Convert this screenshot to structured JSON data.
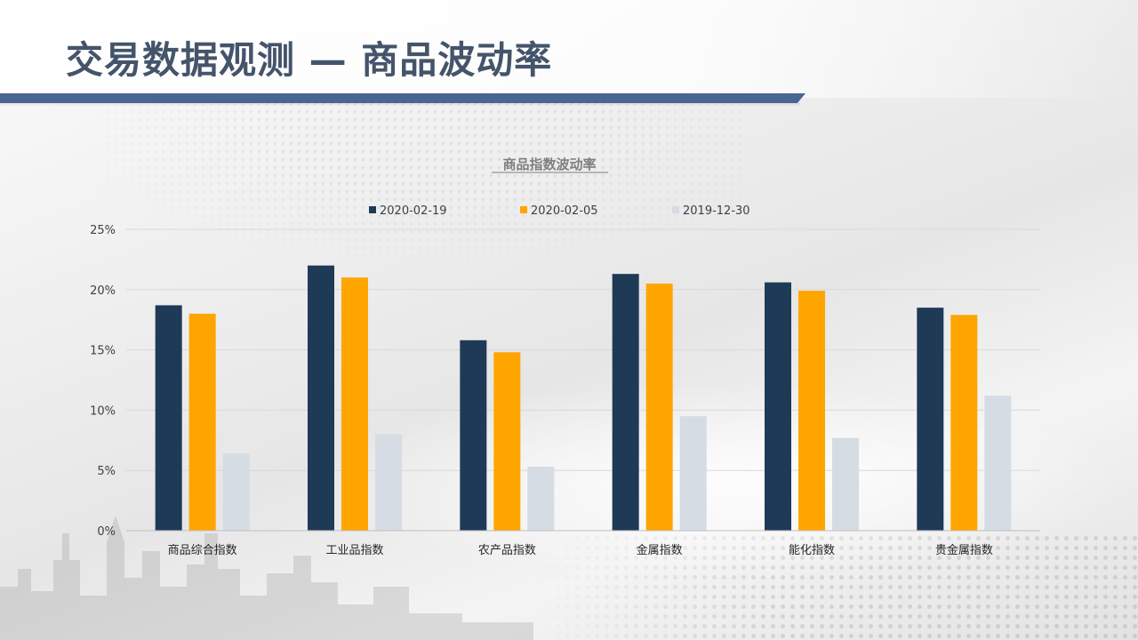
{
  "page": {
    "title": "交易数据观测 — 商品波动率"
  },
  "colors": {
    "title_text": "#44546A",
    "title_bar": "#4A6592",
    "gridline": "#D9D9D9"
  },
  "chart_data": {
    "type": "bar",
    "title": "商品指数波动率",
    "xlabel": "",
    "ylabel": "",
    "ylim": [
      0,
      25
    ],
    "yticks": [
      0,
      5,
      10,
      15,
      20,
      25
    ],
    "ytick_labels": [
      "0%",
      "5%",
      "10%",
      "15%",
      "20%",
      "25%"
    ],
    "grid": true,
    "legend_position": "top-center",
    "categories": [
      "商品综合指数",
      "工业品指数",
      "农产品指数",
      "金属指数",
      "能化指数",
      "贵金属指数"
    ],
    "series": [
      {
        "name": "2020-02-19",
        "color": "#1F3A57",
        "values": [
          18.7,
          22.0,
          15.8,
          21.3,
          20.6,
          18.5
        ]
      },
      {
        "name": "2020-02-05",
        "color": "#FFA500",
        "values": [
          18.0,
          21.0,
          14.8,
          20.5,
          19.9,
          17.9
        ]
      },
      {
        "name": "2019-12-30",
        "color": "#D5DCE4",
        "values": [
          6.4,
          8.0,
          5.3,
          9.5,
          7.7,
          11.2
        ]
      }
    ]
  }
}
